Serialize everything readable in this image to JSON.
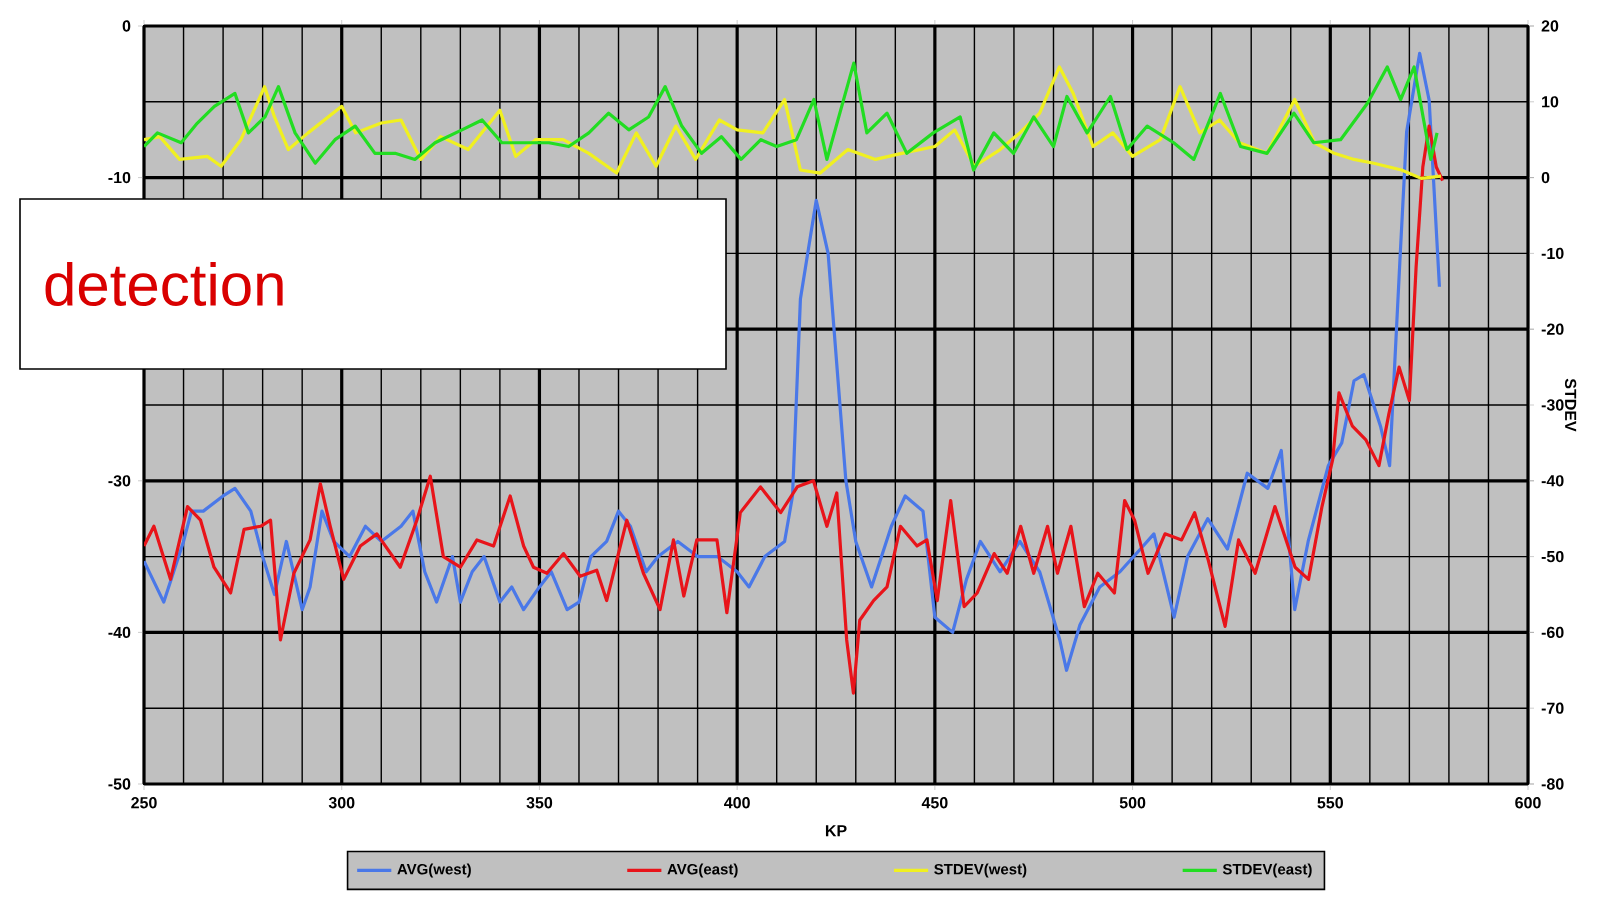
{
  "chart_data": {
    "type": "line",
    "xlabel": "KP",
    "y2label": "STDEV",
    "annotations": [
      "detection"
    ],
    "xlim": [
      250,
      600
    ],
    "xticks": [
      250,
      300,
      350,
      400,
      450,
      500,
      550,
      600
    ],
    "ylim": [
      -50,
      0
    ],
    "yticks": [
      0,
      -10,
      {
        "value": -20,
        "label": null
      },
      -30,
      -40,
      -50
    ],
    "y2lim": [
      -80,
      20
    ],
    "y2ticks": [
      20,
      10,
      0,
      -10,
      -20,
      -30,
      -40,
      -50,
      -60,
      -70,
      -80
    ],
    "grid": true,
    "legend": "bottom",
    "line_style": "solid",
    "marker": "none",
    "series": [
      {
        "name": "AVG(west)",
        "color": "#4a78e8",
        "x": [
          250,
          255,
          260,
          262,
          265,
          270,
          273,
          277,
          280,
          283,
          286,
          290,
          292,
          295,
          298,
          302,
          306,
          310,
          315,
          318,
          321,
          324,
          328,
          330,
          333,
          336,
          340,
          343,
          346,
          350,
          353,
          357,
          360,
          363,
          367,
          370,
          373,
          377,
          380,
          385,
          390,
          395,
          400,
          403,
          407,
          412,
          414,
          416,
          420,
          423,
          427.5,
          430,
          434,
          439,
          442.5,
          447,
          450,
          454.5,
          458,
          461.5,
          466.5,
          471.5,
          476.5,
          481.6,
          483.3,
          486.7,
          491.7,
          496.8,
          502,
          505.4,
          510.5,
          513.9,
          519,
          524,
          529,
          534.2,
          537.6,
          541,
          544.4,
          549.5,
          552.9,
          556,
          558.5,
          562.7,
          565,
          567.6,
          569.3,
          572.6,
          575,
          577.6
        ],
        "values": [
          -35.3,
          -38,
          -34,
          -32,
          -32,
          -31,
          -30.5,
          -32,
          -35,
          -37.5,
          -34,
          -38.5,
          -37,
          -32,
          -34,
          -35,
          -33,
          -34,
          -33,
          -32,
          -36,
          -38,
          -35,
          -38,
          -36,
          -35,
          -38,
          -37,
          -38.5,
          -37,
          -36,
          -38.5,
          -38,
          -35,
          -34,
          -32,
          -33,
          -36,
          -35,
          -34,
          -35,
          -35,
          -36,
          -37,
          -35,
          -34,
          -31,
          -18,
          -11.5,
          -15,
          -30,
          -34,
          -37,
          -33,
          -31,
          -32,
          -39,
          -40,
          -36.5,
          -34,
          -36,
          -34,
          -36,
          -40.5,
          -42.5,
          -39.5,
          -37,
          -36,
          -34.5,
          -33.5,
          -39,
          -35,
          -32.5,
          -34.5,
          -29.5,
          -30.5,
          -28,
          -38.5,
          -34,
          -29,
          -27.5,
          -23.4,
          -23,
          -26.4,
          -29,
          -15.5,
          -7,
          -1.8,
          -4.9,
          -17.2
        ]
      },
      {
        "name": "AVG(east)",
        "color": "#e8141a",
        "x": [
          250,
          252.5,
          256.7,
          261,
          264.3,
          267.7,
          271.9,
          275.3,
          279.5,
          282,
          284.5,
          287.9,
          292,
          294.6,
          297.1,
          300.5,
          304.7,
          308.9,
          314.8,
          319,
          322.4,
          325.7,
          330,
          334.2,
          338.4,
          342.6,
          346,
          348.5,
          351.9,
          356.1,
          360.3,
          364.5,
          367,
          372.1,
          376.3,
          380.5,
          383.9,
          386.5,
          389.8,
          394.9,
          397.4,
          400.8,
          405.9,
          411,
          415.2,
          419.3,
          422.7,
          425.2,
          427.7,
          429.4,
          431,
          434.5,
          437.9,
          441.3,
          445.5,
          448,
          450.6,
          454,
          457.4,
          460.7,
          465,
          468.3,
          471.7,
          475,
          478.5,
          481,
          484.4,
          487.8,
          491.2,
          495.4,
          498,
          500.5,
          503.9,
          508.2,
          512.4,
          515.7,
          519.1,
          523.4,
          526.8,
          531,
          536,
          541.1,
          544.5,
          547.9,
          550.6,
          552.2,
          555.6,
          559,
          562.3,
          564.8,
          567.4,
          570,
          571.7,
          573.4,
          575,
          576.8,
          578.4
        ],
        "values": [
          -34.3,
          -33,
          -36.5,
          -31.7,
          -32.6,
          -35.7,
          -37.4,
          -33.2,
          -33,
          -32.6,
          -40.5,
          -36.1,
          -33.9,
          -30.2,
          -33,
          -36.5,
          -34.3,
          -33.5,
          -35.7,
          -32.6,
          -29.7,
          -35,
          -35.7,
          -33.9,
          -34.3,
          -31,
          -34.3,
          -35.7,
          -36.1,
          -34.8,
          -36.3,
          -35.9,
          -37.9,
          -32.6,
          -36.1,
          -38.5,
          -33.9,
          -37.6,
          -33.9,
          -33.9,
          -38.7,
          -32.1,
          -30.4,
          -32.1,
          -30.4,
          -30,
          -33,
          -30.8,
          -40.5,
          -44,
          -39.2,
          -37.9,
          -37,
          -33,
          -34.3,
          -33.9,
          -37.9,
          -31.3,
          -38.3,
          -37.4,
          -34.8,
          -36.1,
          -33,
          -36.1,
          -33,
          -36.1,
          -33,
          -38.3,
          -36.1,
          -37.4,
          -31.3,
          -32.6,
          -36.1,
          -33.5,
          -33.9,
          -32.1,
          -35.2,
          -39.6,
          -33.9,
          -36.1,
          -31.7,
          -35.7,
          -36.5,
          -31.7,
          -28.6,
          -24.2,
          -26.4,
          -27.3,
          -29,
          -25.6,
          -22.5,
          -24.7,
          -15.9,
          -9.3,
          -6.6,
          -9.3,
          -10.2
        ]
      },
      {
        "name": "STDEV(west)",
        "color": "#f0f020",
        "axis": "y2",
        "x": [
          250,
          254,
          259,
          266,
          269.5,
          274.5,
          280.5,
          283,
          286.5,
          291.5,
          300,
          303.5,
          310,
          315,
          320,
          325,
          332,
          340,
          344,
          349,
          356,
          362.5,
          369.5,
          374.5,
          379.5,
          384.5,
          389.5,
          395.5,
          400,
          406.5,
          412,
          416,
          421,
          428,
          435,
          441.6,
          450,
          455,
          460,
          466.5,
          471.5,
          476.5,
          481.5,
          485,
          490,
          495,
          500,
          507,
          512,
          517,
          522,
          527,
          534,
          541,
          546,
          551,
          556,
          561,
          568,
          573,
          578
        ],
        "values": [
          5,
          5.4,
          2.4,
          2.8,
          1.5,
          5,
          12,
          8,
          3.7,
          5.9,
          9.4,
          5.9,
          7.2,
          7.6,
          2.4,
          5.4,
          3.7,
          8.9,
          2.8,
          5,
          5,
          3.2,
          0.6,
          5.9,
          1.5,
          6.8,
          2.4,
          7.6,
          6.3,
          5.9,
          10.3,
          1,
          0.6,
          3.7,
          2.4,
          3.2,
          4.1,
          6.3,
          1.5,
          3.7,
          5.9,
          8.5,
          14.6,
          11.1,
          4.1,
          5.9,
          2.8,
          5,
          12,
          5.9,
          7.6,
          4.6,
          3.2,
          10.3,
          4.6,
          3.2,
          2.4,
          1.9,
          1,
          -0.1,
          0.2
        ]
      },
      {
        "name": "STDEV(east)",
        "color": "#22dd22",
        "axis": "y2",
        "x": [
          250,
          253.4,
          259.4,
          263.5,
          267.8,
          273,
          276.4,
          280.6,
          284,
          288.2,
          293.3,
          298.3,
          303.4,
          308.4,
          313.5,
          318.5,
          323.6,
          330.4,
          335.5,
          340.5,
          347.3,
          352.4,
          357.4,
          362.5,
          367.5,
          372.6,
          377.6,
          381.8,
          386,
          391,
          396,
          401,
          406,
          410,
          415,
          419.4,
          422.7,
          429.5,
          432.8,
          437.9,
          442.9,
          449.6,
          456.4,
          459.8,
          464.9,
          469.9,
          475,
          480,
          483.4,
          488.5,
          494.4,
          498.6,
          503.7,
          510.4,
          515.5,
          522.2,
          527.3,
          534,
          540.8,
          545.8,
          552.6,
          559.4,
          564.4,
          567.8,
          571.2,
          575.4,
          577
        ],
        "values": [
          4.1,
          5.9,
          4.6,
          7.2,
          9.4,
          11.1,
          5.9,
          8,
          12,
          5.9,
          1.9,
          5,
          6.8,
          3.2,
          3.2,
          2.4,
          4.6,
          6.3,
          7.6,
          4.6,
          4.6,
          4.6,
          4.1,
          5.9,
          8.5,
          6.3,
          8,
          12,
          6.8,
          3.2,
          5.4,
          2.4,
          5,
          4.1,
          5,
          10.3,
          2.4,
          15.1,
          5.9,
          8.5,
          3.2,
          5.9,
          8,
          1,
          5.9,
          3.2,
          8,
          4.1,
          10.7,
          5.9,
          10.7,
          3.7,
          6.8,
          4.6,
          2.4,
          11.1,
          4.1,
          3.2,
          8.5,
          4.6,
          5,
          9.8,
          14.6,
          10.3,
          14.6,
          2.4,
          5.9
        ]
      }
    ]
  }
}
